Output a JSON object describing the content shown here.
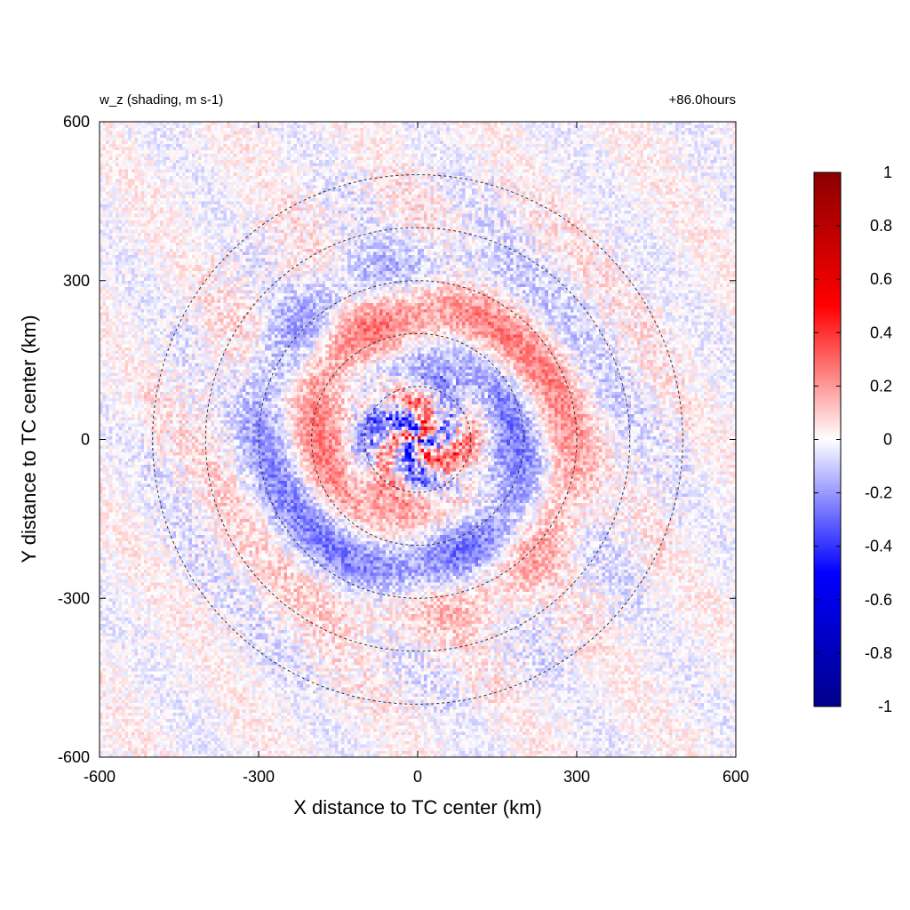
{
  "chart_data": {
    "type": "heatmap",
    "title_left": "w_z (shading, m s-1)",
    "title_right": "+86.0hours",
    "xlabel": "X distance to TC center (km)",
    "ylabel": "Y distance to TC center (km)",
    "xlim": [
      -600,
      600
    ],
    "ylim": [
      -600,
      600
    ],
    "xticks": [
      -600,
      -300,
      0,
      300,
      600
    ],
    "yticks": [
      -600,
      -300,
      0,
      300,
      600
    ],
    "xtick_labels": [
      "-600",
      "-300",
      "0",
      "300",
      "600"
    ],
    "ytick_labels": [
      "-600",
      "-300",
      "0",
      "300",
      "600"
    ],
    "range_rings_km": [
      100,
      200,
      300,
      400,
      500
    ],
    "ring_style": "dashed",
    "colorbar": {
      "vmin": -1,
      "vmax": 1,
      "ticks": [
        1,
        0.8,
        0.6,
        0.4,
        0.2,
        0,
        -0.2,
        -0.4,
        -0.6,
        -0.8,
        -1
      ],
      "tick_labels": [
        "1",
        "0.8",
        "0.6",
        "0.4",
        "0.2",
        "0",
        "-0.2",
        "-0.4",
        "-0.6",
        "-0.8",
        "-1"
      ],
      "colors": [
        "#00008b",
        "#0000ff",
        "#ffffff",
        "#ff0000",
        "#8b0000"
      ]
    },
    "field_description_values": {
      "grid_spacing_km": 6,
      "inner_core_peak": 0.6,
      "background_amplitude": 0.12
    }
  }
}
